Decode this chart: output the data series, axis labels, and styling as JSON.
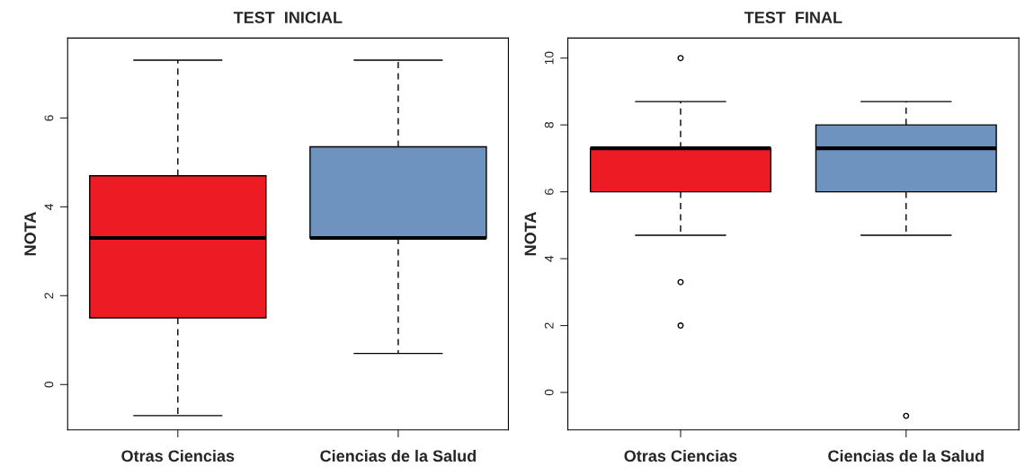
{
  "chart_data": [
    {
      "type": "box",
      "title": "TEST  INICIAL",
      "ylabel": "NOTA",
      "categories": [
        "Otras Ciencias",
        "Ciencias de la Salud"
      ],
      "colors": [
        "#ed1c24",
        "#6f93bf"
      ],
      "boxes": [
        {
          "low": -0.7,
          "q1": 1.5,
          "median": 3.3,
          "q3": 4.7,
          "high": 7.3
        },
        {
          "low": 0.7,
          "q1": 3.3,
          "median": 3.3,
          "q3": 5.35,
          "high": 7.3
        }
      ],
      "ylim": [
        -1.02,
        7.8
      ],
      "yticks": [
        0,
        2,
        4,
        6
      ],
      "grid": false
    },
    {
      "type": "box",
      "title": "TEST  FINAL",
      "ylabel": "NOTA",
      "categories": [
        "Otras Ciencias",
        "Ciencias de la Salud"
      ],
      "colors": [
        "#ed1c24",
        "#6f93bf"
      ],
      "boxes": [
        {
          "low": 4.7,
          "q1": 6,
          "median": 7.3,
          "q3": 7.3,
          "high": 8.7,
          "outliers": [
            10,
            3.3,
            2
          ]
        },
        {
          "low": 4.7,
          "q1": 6,
          "median": 7.3,
          "q3": 8,
          "high": 8.7,
          "outliers": [
            -0.7
          ]
        }
      ],
      "ylim": [
        -1.12,
        10.6
      ],
      "yticks": [
        0,
        2,
        4,
        6,
        8,
        10
      ],
      "grid": false
    }
  ]
}
